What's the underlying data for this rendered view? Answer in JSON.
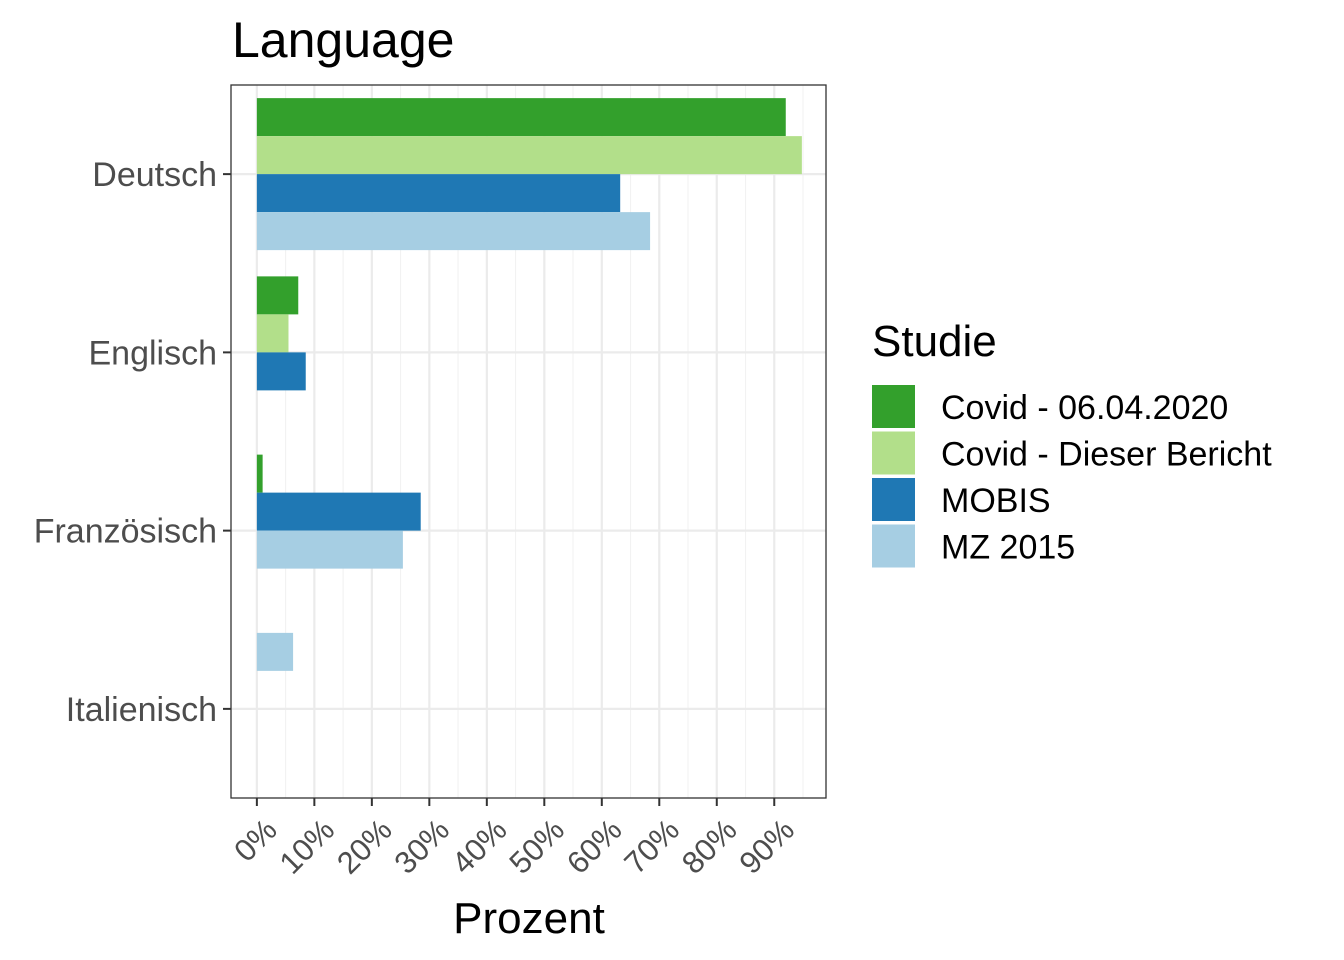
{
  "chart_data": {
    "type": "bar",
    "orientation": "horizontal",
    "title": "Language",
    "xlabel": "Prozent",
    "ylabel": "",
    "categories": [
      "Deutsch",
      "Englisch",
      "Französisch",
      "Italienisch"
    ],
    "x_ticks": [
      "0%",
      "10%",
      "20%",
      "30%",
      "40%",
      "50%",
      "60%",
      "70%",
      "80%",
      "90%"
    ],
    "xlim": [
      -0.045,
      0.99
    ],
    "legend": {
      "title": "Studie",
      "position": "right"
    },
    "grid": true,
    "series": [
      {
        "name": "Covid - 06.04.2020",
        "color": "#33a02c",
        "values": [
          0.92,
          0.072,
          0.01,
          null
        ]
      },
      {
        "name": "Covid - Dieser Bericht",
        "color": "#b2df8a",
        "values": [
          0.948,
          0.055,
          null,
          null
        ]
      },
      {
        "name": "MOBIS",
        "color": "#1f78b4",
        "values": [
          0.632,
          0.085,
          0.285,
          null
        ]
      },
      {
        "name": "MZ 2015",
        "color": "#a6cee3",
        "values": [
          0.684,
          null,
          0.254,
          0.063
        ]
      }
    ]
  }
}
